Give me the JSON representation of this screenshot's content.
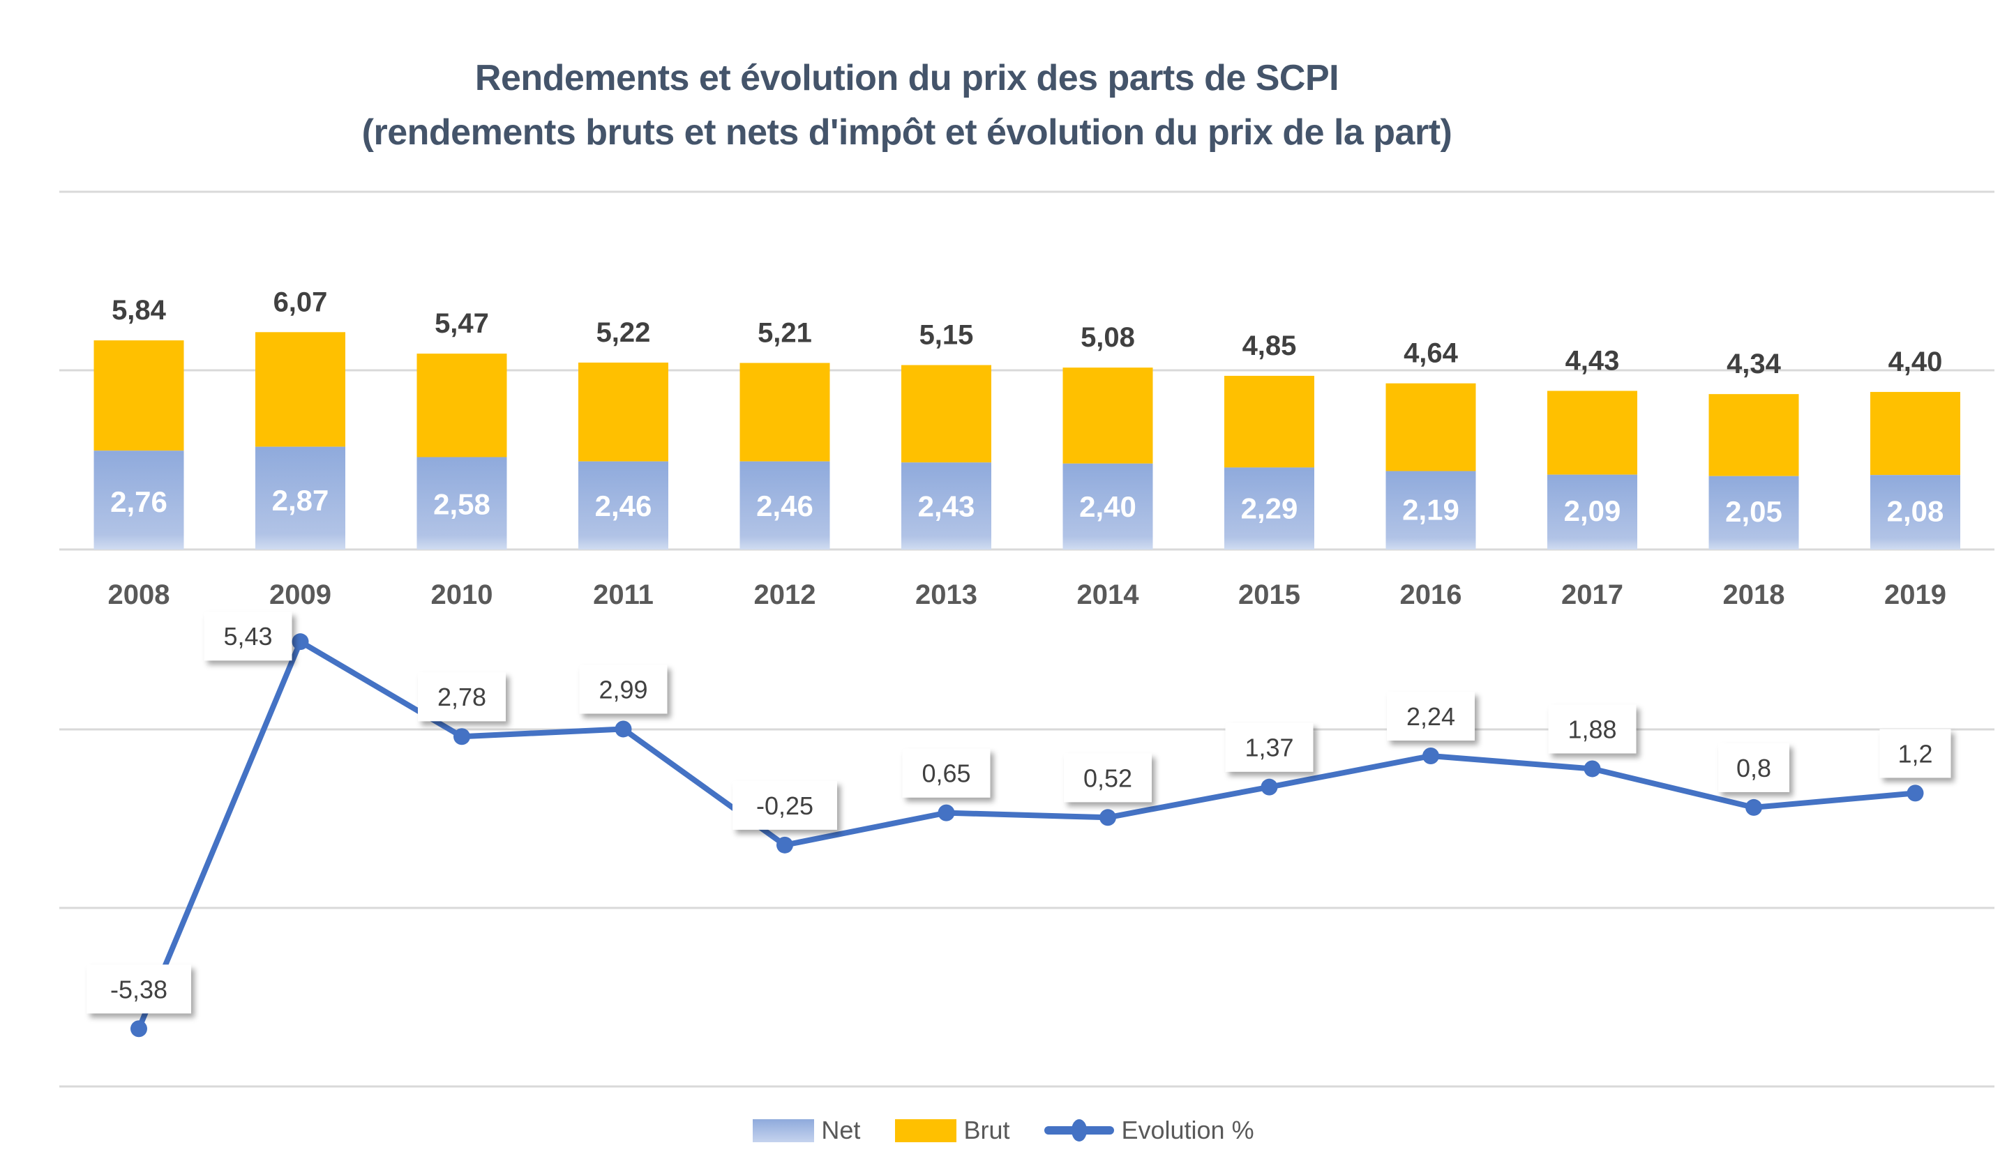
{
  "chart_data": {
    "type": "bar",
    "title": "Rendements et évolution du prix des parts de SCPI",
    "subtitle": "(rendements bruts et nets d'impôt et évolution du prix de la part)",
    "categories": [
      "2008",
      "2009",
      "2010",
      "2011",
      "2012",
      "2013",
      "2014",
      "2015",
      "2016",
      "2017",
      "2018",
      "2019"
    ],
    "series": [
      {
        "name": "Net",
        "kind": "stacked-bar",
        "color": "#8faadc",
        "values": [
          2.76,
          2.87,
          2.58,
          2.46,
          2.46,
          2.43,
          2.4,
          2.29,
          2.19,
          2.09,
          2.05,
          2.08
        ],
        "labels": [
          "2,76",
          "2,87",
          "2,58",
          "2,46",
          "2,46",
          "2,43",
          "2,40",
          "2,29",
          "2,19",
          "2,09",
          "2,05",
          "2,08"
        ]
      },
      {
        "name": "Brut",
        "kind": "stacked-bar-total",
        "color": "#ffc000",
        "values": [
          5.84,
          6.07,
          5.47,
          5.22,
          5.21,
          5.15,
          5.08,
          4.85,
          4.64,
          4.43,
          4.34,
          4.4
        ],
        "labels": [
          "5,84",
          "6,07",
          "5,47",
          "5,22",
          "5,21",
          "5,15",
          "5,08",
          "4,85",
          "4,64",
          "4,43",
          "4,34",
          "4,40"
        ]
      },
      {
        "name": "Evolution %",
        "kind": "line",
        "color": "#4472c4",
        "values": [
          -5.38,
          5.43,
          2.78,
          2.99,
          -0.25,
          0.65,
          0.52,
          1.37,
          2.24,
          1.88,
          0.8,
          1.2
        ],
        "labels": [
          "-5,38",
          "5,43",
          "2,78",
          "2,99",
          "-0,25",
          "0,65",
          "0,52",
          "1,37",
          "2,24",
          "1,88",
          "0,8",
          "1,2"
        ]
      }
    ],
    "bar_axis_range": [
      0,
      10
    ],
    "line_axis_range": [
      -7.5,
      7.5
    ],
    "gridlines": true,
    "y_tick_labels_visible": false,
    "legend": {
      "position": "bottom",
      "entries": [
        "Net",
        "Brut",
        "Evolution %"
      ]
    },
    "xlabel": "",
    "ylabel": ""
  }
}
